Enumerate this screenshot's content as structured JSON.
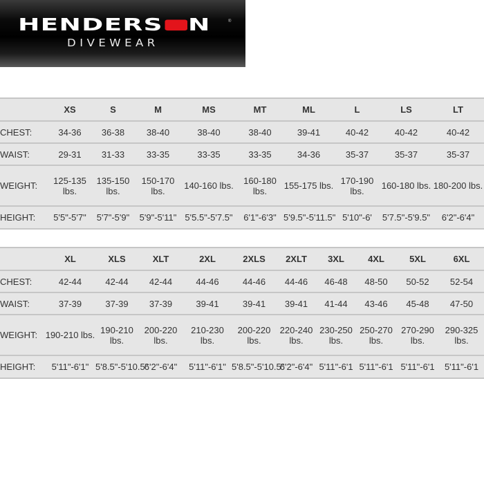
{
  "logo": {
    "brand_pre": "HENDERS",
    "brand_post": "N",
    "subtitle": "DIVEWEAR",
    "registered": "®",
    "accent": "#e3141b"
  },
  "row_labels": {
    "chest": "CHEST:",
    "waist": "WAIST:",
    "weight": "WEIGHT:",
    "height": "HEIGHT:"
  },
  "table1": {
    "sizes": [
      "XS",
      "S",
      "M",
      "MS",
      "MT",
      "ML",
      "L",
      "LS",
      "LT"
    ],
    "chest": [
      "34-36",
      "36-38",
      "38-40",
      "38-40",
      "38-40",
      "39-41",
      "40-42",
      "40-42",
      "40-42"
    ],
    "waist": [
      "29-31",
      "31-33",
      "33-35",
      "33-35",
      "33-35",
      "34-36",
      "35-37",
      "35-37",
      "35-37"
    ],
    "weight": [
      "125-135 lbs.",
      "135-150 lbs.",
      "150-170 lbs.",
      "140-160 lbs.",
      "160-180 lbs.",
      "155-175 lbs.",
      "170-190 lbs.",
      "160-180 lbs.",
      "180-200 lbs."
    ],
    "height": [
      "5'5\"-5'7\"",
      "5'7\"-5'9\"",
      "5'9\"-5'11\"",
      "5'5.5\"-5'7.5\"",
      "6'1\"-6'3\"",
      "5'9.5\"-5'11.5\"",
      "5'10\"-6'",
      "5'7.5\"-5'9.5\"",
      "6'2\"-6'4\""
    ]
  },
  "table2": {
    "sizes": [
      "XL",
      "XLS",
      "XLT",
      "2XL",
      "2XLS",
      "2XLT",
      "3XL",
      "4XL",
      "5XL",
      "6XL"
    ],
    "chest": [
      "42-44",
      "42-44",
      "42-44",
      "44-46",
      "44-46",
      "44-46",
      "46-48",
      "48-50",
      "50-52",
      "52-54"
    ],
    "waist": [
      "37-39",
      "37-39",
      "37-39",
      "39-41",
      "39-41",
      "39-41",
      "41-44",
      "43-46",
      "45-48",
      "47-50"
    ],
    "weight": [
      "190-210 lbs.",
      "190-210 lbs.",
      "200-220 lbs.",
      "210-230 lbs.",
      "200-220 lbs.",
      "220-240 lbs.",
      "230-250 lbs.",
      "250-270 lbs.",
      "270-290 lbs.",
      "290-325 lbs."
    ],
    "height": [
      "5'11\"-6'1\"",
      "5'8.5\"-5'10.5\"",
      "6'2\"-6'4\"",
      "5'11\"-6'1\"",
      "5'8.5\"-5'10.5\"",
      "6'2\"-6'4\"",
      "5'11\"-6'1",
      "5'11\"-6'1",
      "5'11\"-6'1",
      "5'11\"-6'1"
    ]
  }
}
